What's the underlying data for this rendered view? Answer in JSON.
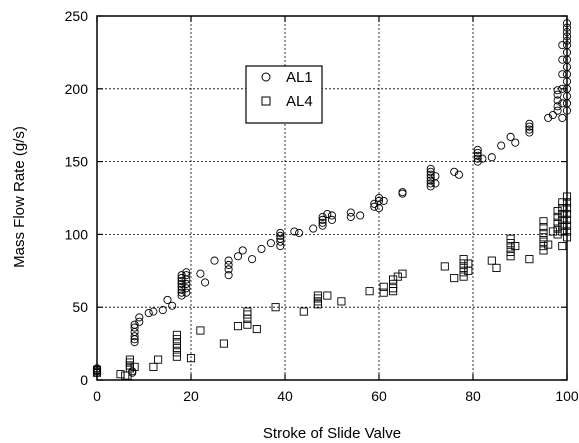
{
  "chart_data": {
    "type": "scatter",
    "title": "",
    "xlabel": "Stroke of Slide Valve",
    "ylabel": "Mass Flow Rate (g/s)",
    "xlim": [
      0,
      100
    ],
    "ylim": [
      0,
      250
    ],
    "xticks": [
      0,
      20,
      40,
      60,
      80,
      100
    ],
    "yticks": [
      0,
      50,
      100,
      150,
      200,
      250
    ],
    "xtick_labels": [
      "0",
      "20",
      "40",
      "60",
      "80",
      "100"
    ],
    "ytick_labels": [
      "0",
      "50",
      "100",
      "150",
      "200",
      "250"
    ],
    "grid": true,
    "legend_position": "top-center",
    "series": [
      {
        "name": "AL1",
        "marker": "circle",
        "color": "#000000",
        "points": [
          [
            0,
            5
          ],
          [
            0,
            6
          ],
          [
            0,
            7
          ],
          [
            0,
            8
          ],
          [
            7.5,
            5
          ],
          [
            7.5,
            6
          ],
          [
            8,
            26
          ],
          [
            8,
            28
          ],
          [
            8,
            30
          ],
          [
            8,
            33
          ],
          [
            8,
            36
          ],
          [
            8,
            38
          ],
          [
            9,
            40
          ],
          [
            9,
            43
          ],
          [
            11,
            46
          ],
          [
            12,
            47
          ],
          [
            14,
            48
          ],
          [
            15,
            55
          ],
          [
            16,
            51
          ],
          [
            18,
            58
          ],
          [
            18,
            60
          ],
          [
            18,
            62
          ],
          [
            18,
            64
          ],
          [
            18,
            66
          ],
          [
            18,
            68
          ],
          [
            18,
            70
          ],
          [
            18,
            72
          ],
          [
            19,
            60
          ],
          [
            19,
            63
          ],
          [
            19,
            66
          ],
          [
            19,
            69
          ],
          [
            19,
            72
          ],
          [
            19,
            74
          ],
          [
            22,
            73
          ],
          [
            23,
            67
          ],
          [
            25,
            82
          ],
          [
            28,
            72
          ],
          [
            28,
            76
          ],
          [
            28,
            79
          ],
          [
            28,
            82
          ],
          [
            30,
            85
          ],
          [
            31,
            89
          ],
          [
            33,
            83
          ],
          [
            35,
            90
          ],
          [
            37,
            94
          ],
          [
            39,
            92
          ],
          [
            39,
            95
          ],
          [
            39,
            97
          ],
          [
            39,
            99
          ],
          [
            39,
            101
          ],
          [
            42,
            102
          ],
          [
            43,
            101
          ],
          [
            46,
            104
          ],
          [
            48,
            106
          ],
          [
            48,
            108
          ],
          [
            48,
            110
          ],
          [
            48,
            112
          ],
          [
            49,
            114
          ],
          [
            50,
            110
          ],
          [
            50,
            113
          ],
          [
            54,
            112
          ],
          [
            54,
            115
          ],
          [
            56,
            113
          ],
          [
            59,
            119
          ],
          [
            59,
            121
          ],
          [
            60,
            118
          ],
          [
            60,
            123
          ],
          [
            60,
            125
          ],
          [
            61,
            123
          ],
          [
            65,
            128
          ],
          [
            65,
            129
          ],
          [
            71,
            133
          ],
          [
            71,
            135
          ],
          [
            71,
            137
          ],
          [
            71,
            139
          ],
          [
            71,
            141
          ],
          [
            71,
            143
          ],
          [
            71,
            145
          ],
          [
            72,
            135
          ],
          [
            72,
            140
          ],
          [
            76,
            143
          ],
          [
            77,
            141
          ],
          [
            81,
            150
          ],
          [
            81,
            152
          ],
          [
            81,
            154
          ],
          [
            81,
            156
          ],
          [
            81,
            158
          ],
          [
            82,
            152
          ],
          [
            84,
            153
          ],
          [
            86,
            161
          ],
          [
            88,
            167
          ],
          [
            89,
            163
          ],
          [
            92,
            170
          ],
          [
            92,
            172
          ],
          [
            92,
            174
          ],
          [
            92,
            176
          ],
          [
            96,
            180
          ],
          [
            97,
            182
          ],
          [
            98,
            185
          ],
          [
            98,
            188
          ],
          [
            98,
            192
          ],
          [
            98,
            196
          ],
          [
            98,
            199
          ],
          [
            99,
            180
          ],
          [
            99,
            190
          ],
          [
            99,
            200
          ],
          [
            99,
            210
          ],
          [
            99,
            220
          ],
          [
            99,
            230
          ],
          [
            100,
            185
          ],
          [
            100,
            190
          ],
          [
            100,
            195
          ],
          [
            100,
            200
          ],
          [
            100,
            205
          ],
          [
            100,
            210
          ],
          [
            100,
            215
          ],
          [
            100,
            220
          ],
          [
            100,
            225
          ],
          [
            100,
            230
          ],
          [
            100,
            233
          ],
          [
            100,
            236
          ],
          [
            100,
            239
          ],
          [
            100,
            242
          ],
          [
            100,
            245
          ]
        ]
      },
      {
        "name": "AL4",
        "marker": "square",
        "color": "#000000",
        "points": [
          [
            0,
            5
          ],
          [
            0,
            7
          ],
          [
            5,
            4
          ],
          [
            6,
            3
          ],
          [
            6.5,
            3
          ],
          [
            7,
            8
          ],
          [
            7,
            10
          ],
          [
            7,
            12
          ],
          [
            7,
            14
          ],
          [
            8,
            9
          ],
          [
            12,
            9
          ],
          [
            13,
            14
          ],
          [
            17,
            16
          ],
          [
            17,
            19
          ],
          [
            17,
            22
          ],
          [
            17,
            25
          ],
          [
            17,
            28
          ],
          [
            17,
            31
          ],
          [
            20,
            15
          ],
          [
            22,
            34
          ],
          [
            27,
            25
          ],
          [
            30,
            37
          ],
          [
            32,
            38
          ],
          [
            32,
            42
          ],
          [
            32,
            45
          ],
          [
            32,
            47
          ],
          [
            34,
            35
          ],
          [
            38,
            50
          ],
          [
            44,
            47
          ],
          [
            47,
            52
          ],
          [
            47,
            54
          ],
          [
            47,
            56
          ],
          [
            47,
            58
          ],
          [
            49,
            58
          ],
          [
            52,
            54
          ],
          [
            58,
            61
          ],
          [
            61,
            60
          ],
          [
            61,
            64
          ],
          [
            63,
            61
          ],
          [
            63,
            63
          ],
          [
            63,
            66
          ],
          [
            63,
            69
          ],
          [
            64,
            71
          ],
          [
            65,
            73
          ],
          [
            74,
            78
          ],
          [
            76,
            70
          ],
          [
            78,
            71
          ],
          [
            78,
            74
          ],
          [
            78,
            77
          ],
          [
            78,
            80
          ],
          [
            78,
            83
          ],
          [
            79,
            75
          ],
          [
            79,
            80
          ],
          [
            84,
            82
          ],
          [
            85,
            77
          ],
          [
            88,
            85
          ],
          [
            88,
            88
          ],
          [
            88,
            91
          ],
          [
            88,
            94
          ],
          [
            88,
            97
          ],
          [
            89,
            92
          ],
          [
            92,
            83
          ],
          [
            95,
            89
          ],
          [
            95,
            92
          ],
          [
            95,
            95
          ],
          [
            95,
            98
          ],
          [
            95,
            101
          ],
          [
            95,
            105
          ],
          [
            95,
            109
          ],
          [
            96,
            93
          ],
          [
            97,
            102
          ],
          [
            98,
            100
          ],
          [
            98,
            104
          ],
          [
            98,
            108
          ],
          [
            98,
            112
          ],
          [
            98,
            116
          ],
          [
            99,
            92
          ],
          [
            99,
            102
          ],
          [
            99,
            106
          ],
          [
            99,
            110
          ],
          [
            99,
            114
          ],
          [
            99,
            118
          ],
          [
            99,
            122
          ],
          [
            100,
            98
          ],
          [
            100,
            102
          ],
          [
            100,
            106
          ],
          [
            100,
            110
          ],
          [
            100,
            114
          ],
          [
            100,
            118
          ],
          [
            100,
            122
          ],
          [
            100,
            126
          ]
        ]
      }
    ]
  }
}
